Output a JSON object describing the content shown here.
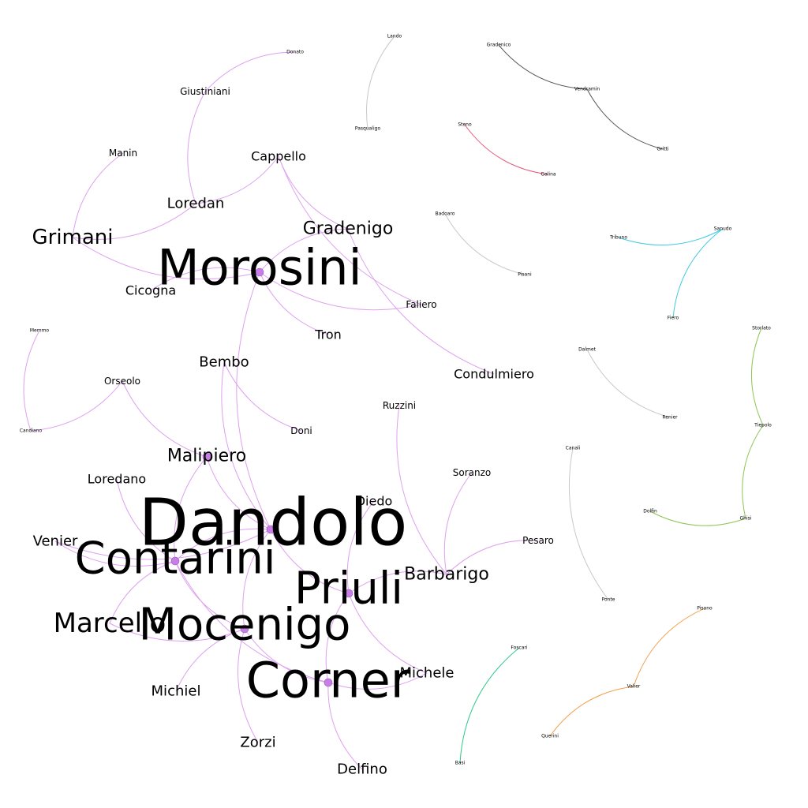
{
  "graph": {
    "nodes": [
      {
        "id": "Lando",
        "label": "Lando",
        "weight": 1
      },
      {
        "id": "Donato",
        "label": "Donato",
        "weight": 1
      },
      {
        "id": "Gradenico",
        "label": "Gradenico",
        "weight": 1
      },
      {
        "id": "Vendramin",
        "label": "Vendramin",
        "weight": 1
      },
      {
        "id": "Giustiniani",
        "label": "Giustiniani",
        "weight": 2
      },
      {
        "id": "Pasqualigo",
        "label": "Pasqualigo",
        "weight": 1
      },
      {
        "id": "Steno",
        "label": "Steno",
        "weight": 1
      },
      {
        "id": "Gritti",
        "label": "Gritti",
        "weight": 1
      },
      {
        "id": "Manin",
        "label": "Manin",
        "weight": 2
      },
      {
        "id": "Cappello",
        "label": "Cappello",
        "weight": 3
      },
      {
        "id": "Galina",
        "label": "Galina",
        "weight": 1
      },
      {
        "id": "Loredan",
        "label": "Loredan",
        "weight": 4
      },
      {
        "id": "Badoaro",
        "label": "Badoaro",
        "weight": 1
      },
      {
        "id": "Gradenigo",
        "label": "Gradenigo",
        "weight": 5
      },
      {
        "id": "Grimani",
        "label": "Grimani",
        "weight": 6
      },
      {
        "id": "Sanudo",
        "label": "Sanudo",
        "weight": 1
      },
      {
        "id": "Tribuno",
        "label": "Tribuno",
        "weight": 1
      },
      {
        "id": "Morosini",
        "label": "Morosini",
        "weight": 10
      },
      {
        "id": "Pisani",
        "label": "Pisani",
        "weight": 1
      },
      {
        "id": "Cicogna",
        "label": "Cicogna",
        "weight": 3
      },
      {
        "id": "Faliero",
        "label": "Faliero",
        "weight": 2
      },
      {
        "id": "Fiero",
        "label": "Fiero",
        "weight": 1
      },
      {
        "id": "Memmo",
        "label": "Memmo",
        "weight": 1
      },
      {
        "id": "Storlato",
        "label": "Storlato",
        "weight": 1
      },
      {
        "id": "Tron",
        "label": "Tron",
        "weight": 3
      },
      {
        "id": "Dalmet",
        "label": "Dalmet",
        "weight": 1
      },
      {
        "id": "Bembo",
        "label": "Bembo",
        "weight": 4
      },
      {
        "id": "Condulmiero",
        "label": "Condulmiero",
        "weight": 3
      },
      {
        "id": "Orseolo",
        "label": "Orseolo",
        "weight": 2
      },
      {
        "id": "Ruzzini",
        "label": "Ruzzini",
        "weight": 2
      },
      {
        "id": "Renier",
        "label": "Renier",
        "weight": 1
      },
      {
        "id": "Tiepolo",
        "label": "Tiepolo",
        "weight": 1
      },
      {
        "id": "Doni",
        "label": "Doni",
        "weight": 2
      },
      {
        "id": "Candiano",
        "label": "Candiano",
        "weight": 1
      },
      {
        "id": "Canali",
        "label": "Canali",
        "weight": 1
      },
      {
        "id": "Malipiero",
        "label": "Malipiero",
        "weight": 5
      },
      {
        "id": "Soranzo",
        "label": "Soranzo",
        "weight": 2
      },
      {
        "id": "Loredano",
        "label": "Loredano",
        "weight": 3
      },
      {
        "id": "Diedo",
        "label": "Diedo",
        "weight": 3
      },
      {
        "id": "Dolfin",
        "label": "Dolfin",
        "weight": 1
      },
      {
        "id": "Ghisi",
        "label": "Ghisi",
        "weight": 1
      },
      {
        "id": "Dandolo",
        "label": "Dandolo",
        "weight": 16
      },
      {
        "id": "Venier",
        "label": "Venier",
        "weight": 4
      },
      {
        "id": "Pesaro",
        "label": "Pesaro",
        "weight": 2
      },
      {
        "id": "Contarini",
        "label": "Contarini",
        "weight": 12
      },
      {
        "id": "Barbarigo",
        "label": "Barbarigo",
        "weight": 5
      },
      {
        "id": "Priuli",
        "label": "Priuli",
        "weight": 12
      },
      {
        "id": "Ponte",
        "label": "Ponte",
        "weight": 1
      },
      {
        "id": "Pisano",
        "label": "Pisano",
        "weight": 1
      },
      {
        "id": "Marcello",
        "label": "Marcello",
        "weight": 7
      },
      {
        "id": "Mocenigo",
        "label": "Mocenigo",
        "weight": 12
      },
      {
        "id": "Foscari",
        "label": "Foscari",
        "weight": 1
      },
      {
        "id": "Michele",
        "label": "Michele",
        "weight": 4
      },
      {
        "id": "Corner",
        "label": "Corner",
        "weight": 13
      },
      {
        "id": "Valier",
        "label": "Valier",
        "weight": 1
      },
      {
        "id": "Michiel",
        "label": "Michiel",
        "weight": 4
      },
      {
        "id": "Zorzi",
        "label": "Zorzi",
        "weight": 4
      },
      {
        "id": "Querini",
        "label": "Querini",
        "weight": 1
      },
      {
        "id": "Basi",
        "label": "Basi",
        "weight": 1
      },
      {
        "id": "Delfino",
        "label": "Delfino",
        "weight": 4
      }
    ],
    "edges": [
      {
        "source": "Lando",
        "target": "Pasqualigo",
        "color": "#c8c8c8"
      },
      {
        "source": "Gradenico",
        "target": "Vendramin",
        "color": "#555555"
      },
      {
        "source": "Vendramin",
        "target": "Gritti",
        "color": "#555555"
      },
      {
        "source": "Steno",
        "target": "Galina",
        "color": "#e85a7a"
      },
      {
        "source": "Badoaro",
        "target": "Pisani",
        "color": "#c8c8c8"
      },
      {
        "source": "Tribuno",
        "target": "Sanudo",
        "color": "#3fc9e3"
      },
      {
        "source": "Sanudo",
        "target": "Fiero",
        "color": "#3fc9e3"
      },
      {
        "source": "Dalmet",
        "target": "Renier",
        "color": "#c8c8c8"
      },
      {
        "source": "Storlato",
        "target": "Tiepolo",
        "color": "#8fc452"
      },
      {
        "source": "Tiepolo",
        "target": "Ghisi",
        "color": "#8fc452"
      },
      {
        "source": "Dolfin",
        "target": "Ghisi",
        "color": "#8fc452"
      },
      {
        "source": "Canali",
        "target": "Ponte",
        "color": "#c8c8c8"
      },
      {
        "source": "Pisano",
        "target": "Valier",
        "color": "#f0a04b"
      },
      {
        "source": "Valier",
        "target": "Querini",
        "color": "#f0a04b"
      },
      {
        "source": "Foscari",
        "target": "Basi",
        "color": "#2ec98a"
      },
      {
        "source": "Memmo",
        "target": "Candiano",
        "color": "#dda0f0"
      },
      {
        "source": "Candiano",
        "target": "Orseolo",
        "color": "#dda0f0"
      },
      {
        "source": "Donato",
        "target": "Giustiniani",
        "color": "#dda0f0"
      },
      {
        "source": "Giustiniani",
        "target": "Loredan",
        "color": "#dda0f0"
      },
      {
        "source": "Manin",
        "target": "Grimani",
        "color": "#dda0f0"
      },
      {
        "source": "Grimani",
        "target": "Loredan",
        "color": "#dda0f0"
      },
      {
        "source": "Grimani",
        "target": "Morosini",
        "color": "#dda0f0"
      },
      {
        "source": "Loredan",
        "target": "Cappello",
        "color": "#dda0f0"
      },
      {
        "source": "Cappello",
        "target": "Gradenigo",
        "color": "#dda0f0"
      },
      {
        "source": "Cappello",
        "target": "Faliero",
        "color": "#dda0f0"
      },
      {
        "source": "Gradenigo",
        "target": "Morosini",
        "color": "#dda0f0"
      },
      {
        "source": "Gradenigo",
        "target": "Condulmiero",
        "color": "#dda0f0"
      },
      {
        "source": "Morosini",
        "target": "Cicogna",
        "color": "#dda0f0"
      },
      {
        "source": "Morosini",
        "target": "Faliero",
        "color": "#dda0f0"
      },
      {
        "source": "Morosini",
        "target": "Tron",
        "color": "#dda0f0"
      },
      {
        "source": "Morosini",
        "target": "Dandolo",
        "color": "#dda0f0"
      },
      {
        "source": "Bembo",
        "target": "Doni",
        "color": "#dda0f0"
      },
      {
        "source": "Bembo",
        "target": "Dandolo",
        "color": "#dda0f0"
      },
      {
        "source": "Orseolo",
        "target": "Malipiero",
        "color": "#dda0f0"
      },
      {
        "source": "Malipiero",
        "target": "Dandolo",
        "color": "#dda0f0"
      },
      {
        "source": "Malipiero",
        "target": "Contarini",
        "color": "#dda0f0"
      },
      {
        "source": "Loredano",
        "target": "Contarini",
        "color": "#dda0f0"
      },
      {
        "source": "Venier",
        "target": "Contarini",
        "color": "#dda0f0"
      },
      {
        "source": "Venier",
        "target": "Dandolo",
        "color": "#dda0f0"
      },
      {
        "source": "Ruzzini",
        "target": "Barbarigo",
        "color": "#dda0f0"
      },
      {
        "source": "Soranzo",
        "target": "Barbarigo",
        "color": "#dda0f0"
      },
      {
        "source": "Pesaro",
        "target": "Barbarigo",
        "color": "#dda0f0"
      },
      {
        "source": "Diedo",
        "target": "Priuli",
        "color": "#dda0f0"
      },
      {
        "source": "Barbarigo",
        "target": "Priuli",
        "color": "#dda0f0"
      },
      {
        "source": "Dandolo",
        "target": "Contarini",
        "color": "#dda0f0"
      },
      {
        "source": "Dandolo",
        "target": "Priuli",
        "color": "#dda0f0"
      },
      {
        "source": "Dandolo",
        "target": "Mocenigo",
        "color": "#dda0f0"
      },
      {
        "source": "Contarini",
        "target": "Marcello",
        "color": "#dda0f0"
      },
      {
        "source": "Contarini",
        "target": "Mocenigo",
        "color": "#dda0f0"
      },
      {
        "source": "Contarini",
        "target": "Corner",
        "color": "#dda0f0"
      },
      {
        "source": "Priuli",
        "target": "Corner",
        "color": "#dda0f0"
      },
      {
        "source": "Priuli",
        "target": "Michele",
        "color": "#dda0f0"
      },
      {
        "source": "Marcello",
        "target": "Mocenigo",
        "color": "#dda0f0"
      },
      {
        "source": "Mocenigo",
        "target": "Michiel",
        "color": "#dda0f0"
      },
      {
        "source": "Mocenigo",
        "target": "Zorzi",
        "color": "#dda0f0"
      },
      {
        "source": "Mocenigo",
        "target": "Corner",
        "color": "#dda0f0"
      },
      {
        "source": "Corner",
        "target": "Michele",
        "color": "#dda0f0"
      },
      {
        "source": "Corner",
        "target": "Delfino",
        "color": "#dda0f0"
      }
    ],
    "hub_nodes": [
      "Morosini",
      "Malipiero",
      "Dandolo",
      "Contarini",
      "Priuli",
      "Mocenigo",
      "Corner"
    ],
    "hub_color": "#c77fe6"
  }
}
